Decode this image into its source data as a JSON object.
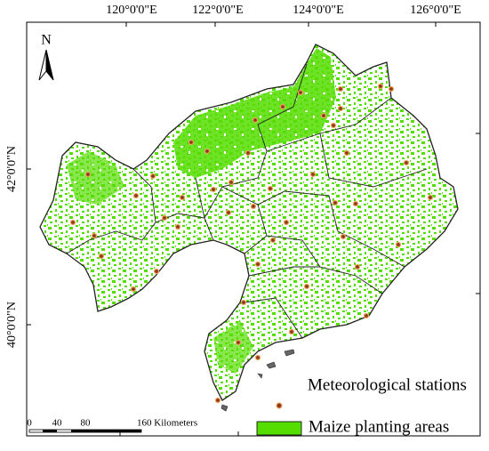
{
  "north_arrow": "N",
  "graticule": {
    "top": [
      "120°0'0\"E",
      "122°0'0\"E",
      "124°0'0\"E",
      "126°0'0\"E"
    ],
    "left": [
      "42°0'0\"N",
      "40°0'0\"N"
    ]
  },
  "scale_bar": {
    "labels": [
      "0",
      "40",
      "80",
      "160 Kilometers"
    ]
  },
  "legend": [
    {
      "label": "Meteorological stations"
    },
    {
      "label": "Maize planting areas"
    }
  ]
}
